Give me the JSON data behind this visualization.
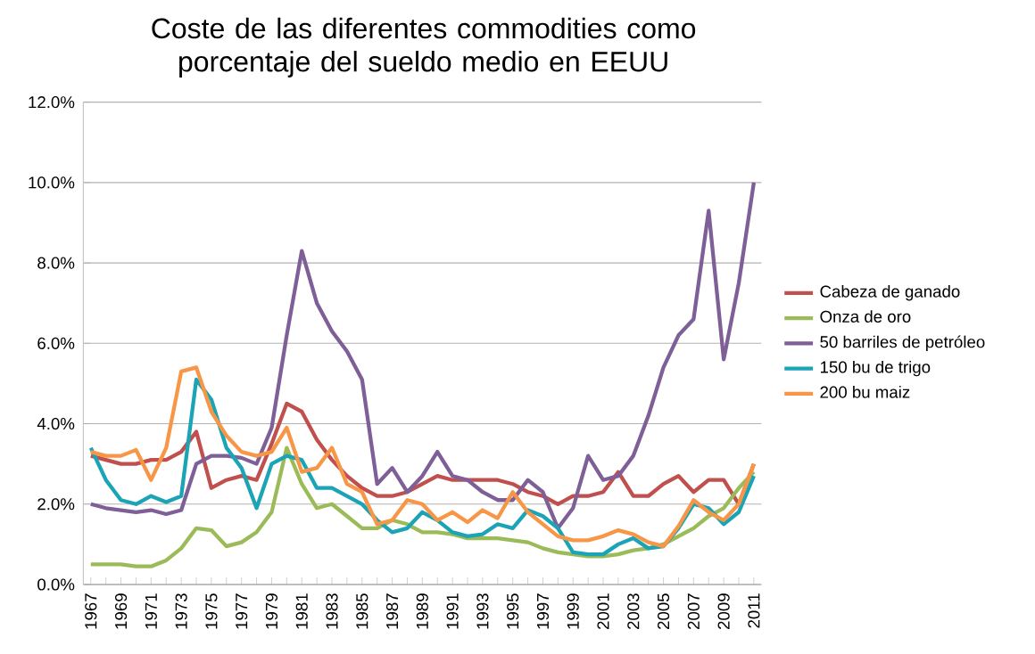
{
  "chart_data": {
    "type": "line",
    "title": "Coste de las diferentes commodities como porcentaje del sueldo medio en EEUU",
    "categories": [
      "1967",
      null,
      "1969",
      null,
      "1971",
      null,
      "1973",
      null,
      "1975",
      null,
      "1977",
      null,
      "1979",
      null,
      "1981",
      null,
      "1983",
      null,
      "1985",
      null,
      "1987",
      null,
      "1989",
      null,
      "1991",
      null,
      "1993",
      null,
      "1995",
      null,
      "1997",
      null,
      "1999",
      null,
      "2001",
      null,
      "2003",
      null,
      "2005",
      null,
      "2007",
      null,
      "2009",
      null,
      "2011"
    ],
    "series": [
      {
        "name": "Cabeza de ganado",
        "color": "#c0504d",
        "values": [
          3.2,
          3.1,
          3.0,
          3.0,
          3.1,
          3.1,
          3.3,
          3.8,
          2.4,
          2.6,
          2.7,
          2.6,
          3.5,
          4.5,
          4.3,
          3.6,
          3.1,
          2.7,
          2.4,
          2.2,
          2.2,
          2.3,
          2.5,
          2.7,
          2.6,
          2.6,
          2.6,
          2.6,
          2.5,
          2.3,
          2.2,
          2.0,
          2.2,
          2.2,
          2.3,
          2.8,
          2.2,
          2.2,
          2.5,
          2.7,
          2.3,
          2.6,
          2.6,
          2.0,
          3.0
        ]
      },
      {
        "name": "Onza de oro",
        "color": "#9bbb59",
        "values": [
          0.5,
          0.5,
          0.5,
          0.45,
          0.45,
          0.6,
          0.9,
          1.4,
          1.35,
          0.95,
          1.05,
          1.3,
          1.8,
          3.4,
          2.5,
          1.9,
          2.0,
          1.7,
          1.4,
          1.4,
          1.6,
          1.5,
          1.3,
          1.3,
          1.25,
          1.15,
          1.15,
          1.15,
          1.1,
          1.05,
          0.9,
          0.8,
          0.75,
          0.7,
          0.7,
          0.75,
          0.85,
          0.9,
          1.0,
          1.2,
          1.4,
          1.7,
          1.9,
          2.4,
          2.8
        ]
      },
      {
        "name": "50 barriles de petróleo",
        "color": "#7f5f97",
        "values": [
          2.0,
          1.9,
          1.85,
          1.8,
          1.85,
          1.75,
          1.85,
          3.0,
          3.2,
          3.2,
          3.15,
          3.0,
          3.9,
          6.2,
          8.3,
          7.0,
          6.3,
          5.8,
          5.1,
          2.5,
          2.9,
          2.3,
          2.7,
          3.3,
          2.7,
          2.6,
          2.3,
          2.1,
          2.1,
          2.6,
          2.3,
          1.4,
          1.9,
          3.2,
          2.6,
          2.7,
          3.2,
          4.2,
          5.4,
          6.2,
          6.6,
          9.3,
          5.6,
          7.5,
          10.0
        ]
      },
      {
        "name": "150 bu de trigo",
        "color": "#1ba3b6",
        "values": [
          3.4,
          2.6,
          2.1,
          2.0,
          2.2,
          2.05,
          2.2,
          5.1,
          4.6,
          3.4,
          2.9,
          1.9,
          3.0,
          3.2,
          3.1,
          2.4,
          2.4,
          2.2,
          2.0,
          1.6,
          1.3,
          1.4,
          1.8,
          1.6,
          1.3,
          1.2,
          1.25,
          1.5,
          1.4,
          1.85,
          1.7,
          1.4,
          0.8,
          0.75,
          0.75,
          1.0,
          1.15,
          0.9,
          0.95,
          1.4,
          2.0,
          1.9,
          1.5,
          1.8,
          2.7
        ]
      },
      {
        "name": "200 bu maiz",
        "color": "#f79646",
        "values": [
          3.3,
          3.2,
          3.2,
          3.35,
          2.6,
          3.4,
          5.3,
          5.4,
          4.3,
          3.7,
          3.3,
          3.2,
          3.3,
          3.9,
          2.8,
          2.9,
          3.4,
          2.5,
          2.3,
          1.5,
          1.6,
          2.1,
          2.0,
          1.6,
          1.8,
          1.55,
          1.85,
          1.65,
          2.3,
          1.8,
          1.5,
          1.2,
          1.1,
          1.1,
          1.2,
          1.35,
          1.25,
          1.05,
          0.95,
          1.45,
          2.1,
          1.8,
          1.6,
          2.0,
          3.0
        ]
      }
    ],
    "ylim": [
      0,
      12
    ],
    "yticks": [
      {
        "value": 0,
        "label": "0.0%"
      },
      {
        "value": 2,
        "label": "2.0%"
      },
      {
        "value": 4,
        "label": "4.0%"
      },
      {
        "value": 6,
        "label": "6.0%"
      },
      {
        "value": 8,
        "label": "8.0%"
      },
      {
        "value": 10,
        "label": "10.0%"
      },
      {
        "value": 12,
        "label": "12.0%"
      }
    ],
    "grid": "y",
    "legend": "right",
    "marker": "none",
    "line_style": "solid"
  }
}
